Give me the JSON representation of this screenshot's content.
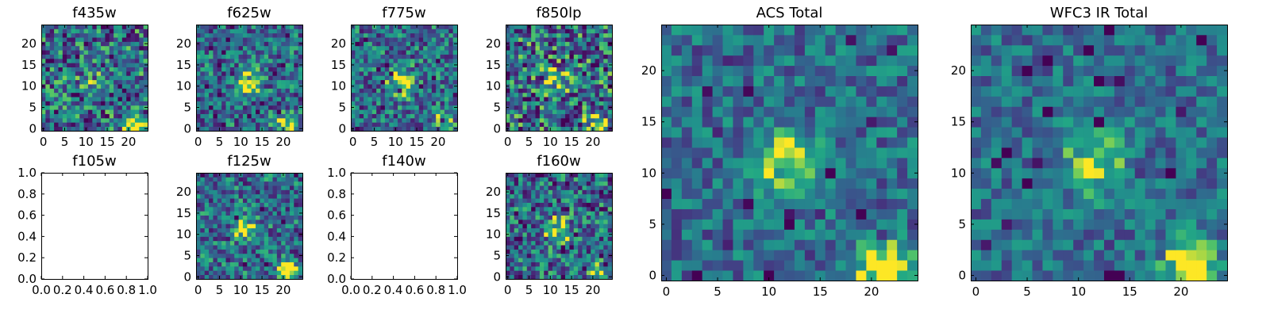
{
  "chart_data": [
    {
      "type": "heatmap",
      "title": "f435w",
      "grid_size": 25,
      "empty": false,
      "seed": 11,
      "colormap": "viridis",
      "xticks": [
        "0",
        "5",
        "10",
        "15",
        "20"
      ],
      "yticks": [
        "0",
        "5",
        "10",
        "15",
        "20"
      ],
      "xlim": [
        -0.5,
        24.5
      ],
      "ylim": [
        -0.5,
        24.5
      ],
      "features": {
        "center": 0.15,
        "corner": 0.7,
        "noise": 0.9
      }
    },
    {
      "type": "heatmap",
      "title": "f625w",
      "grid_size": 25,
      "empty": false,
      "seed": 23,
      "colormap": "viridis",
      "xticks": [
        "0",
        "5",
        "10",
        "15",
        "20"
      ],
      "yticks": [
        "0",
        "5",
        "10",
        "15",
        "20"
      ],
      "xlim": [
        -0.5,
        24.5
      ],
      "ylim": [
        -0.5,
        24.5
      ],
      "features": {
        "center": 0.55,
        "corner": 0.6,
        "noise": 0.75
      }
    },
    {
      "type": "heatmap",
      "title": "f775w",
      "grid_size": 25,
      "empty": false,
      "seed": 37,
      "colormap": "viridis",
      "xticks": [
        "0",
        "5",
        "10",
        "15",
        "20"
      ],
      "yticks": [
        "0",
        "5",
        "10",
        "15",
        "20"
      ],
      "xlim": [
        -0.5,
        24.5
      ],
      "ylim": [
        -0.5,
        24.5
      ],
      "features": {
        "center": 0.6,
        "corner": 0.5,
        "noise": 0.75
      }
    },
    {
      "type": "heatmap",
      "title": "f850lp",
      "grid_size": 25,
      "empty": false,
      "seed": 41,
      "colormap": "viridis",
      "xticks": [
        "0",
        "5",
        "10",
        "15",
        "20"
      ],
      "yticks": [
        "0",
        "5",
        "10",
        "15",
        "20"
      ],
      "xlim": [
        -0.5,
        24.5
      ],
      "ylim": [
        -0.5,
        24.5
      ],
      "features": {
        "center": 0.35,
        "corner": 0.5,
        "noise": 0.95
      }
    },
    {
      "type": "empty",
      "title": "f105w",
      "empty": true,
      "xticks": [
        "0.0",
        "0.2",
        "0.4",
        "0.6",
        "0.8",
        "1.0"
      ],
      "yticks": [
        "0.0",
        "0.2",
        "0.4",
        "0.6",
        "0.8",
        "1.0"
      ],
      "xlim": [
        0,
        1
      ],
      "ylim": [
        0,
        1
      ]
    },
    {
      "type": "heatmap",
      "title": "f125w",
      "grid_size": 25,
      "empty": false,
      "seed": 53,
      "colormap": "viridis",
      "xticks": [
        "0",
        "5",
        "10",
        "15",
        "20"
      ],
      "yticks": [
        "0",
        "5",
        "10",
        "15",
        "20"
      ],
      "xlim": [
        -0.5,
        24.5
      ],
      "ylim": [
        -0.5,
        24.5
      ],
      "features": {
        "center": 0.45,
        "corner": 0.85,
        "noise": 0.75
      }
    },
    {
      "type": "empty",
      "title": "f140w",
      "empty": true,
      "xticks": [
        "0.0",
        "0.2",
        "0.4",
        "0.6",
        "0.8",
        "1.0"
      ],
      "yticks": [
        "0.0",
        "0.2",
        "0.4",
        "0.6",
        "0.8",
        "1.0"
      ],
      "xlim": [
        0,
        1
      ],
      "ylim": [
        0,
        1
      ]
    },
    {
      "type": "heatmap",
      "title": "f160w",
      "grid_size": 25,
      "empty": false,
      "seed": 67,
      "colormap": "viridis",
      "xticks": [
        "0",
        "5",
        "10",
        "15",
        "20"
      ],
      "yticks": [
        "0",
        "5",
        "10",
        "15",
        "20"
      ],
      "xlim": [
        -0.5,
        24.5
      ],
      "ylim": [
        -0.5,
        24.5
      ],
      "features": {
        "center": 0.5,
        "corner": 0.4,
        "noise": 0.8
      }
    },
    {
      "type": "heatmap",
      "title": "ACS Total",
      "grid_size": 25,
      "empty": false,
      "seed": 79,
      "colormap": "viridis",
      "xticks": [
        "0",
        "5",
        "10",
        "15",
        "20"
      ],
      "yticks": [
        "0",
        "5",
        "10",
        "15",
        "20"
      ],
      "xlim": [
        -0.5,
        24.5
      ],
      "ylim": [
        -0.5,
        24.5
      ],
      "features": {
        "center": 0.6,
        "corner": 0.75,
        "noise": 0.55
      }
    },
    {
      "type": "heatmap",
      "title": "WFC3 IR Total",
      "grid_size": 25,
      "empty": false,
      "seed": 97,
      "colormap": "viridis",
      "xticks": [
        "0",
        "5",
        "10",
        "15",
        "20"
      ],
      "yticks": [
        "0",
        "5",
        "10",
        "15",
        "20"
      ],
      "xlim": [
        -0.5,
        24.5
      ],
      "ylim": [
        -0.5,
        24.5
      ],
      "features": {
        "center": 0.5,
        "corner": 0.8,
        "noise": 0.5
      }
    }
  ]
}
